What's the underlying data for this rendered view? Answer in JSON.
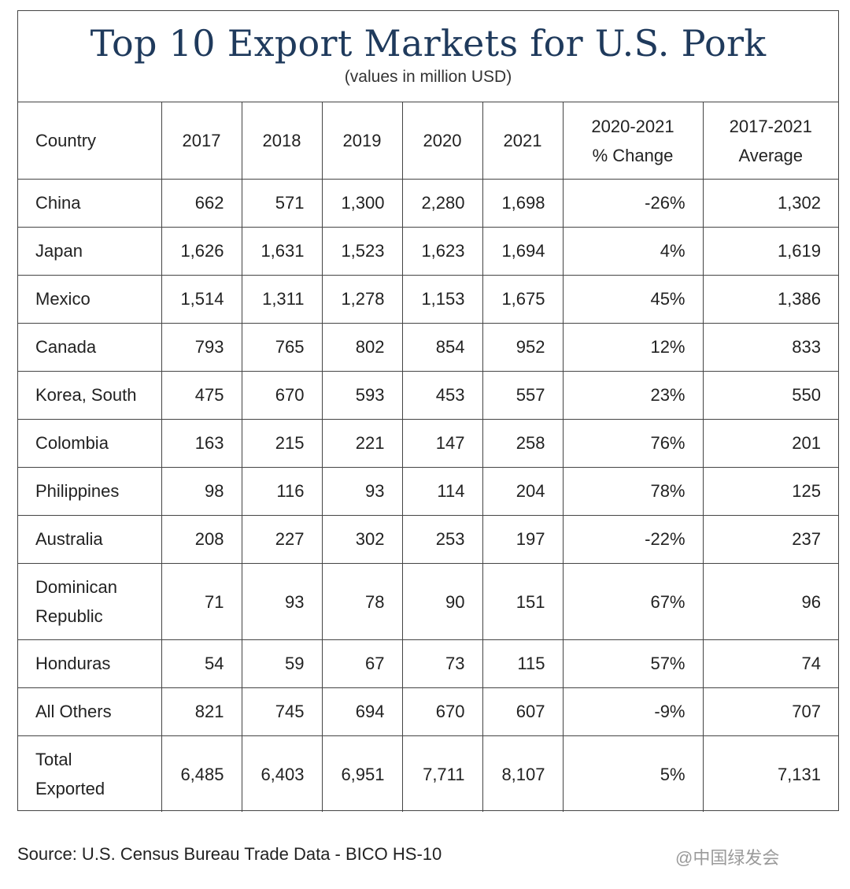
{
  "chart_data": {
    "type": "table",
    "title": "Top 10 Export Markets for U.S. Pork",
    "subtitle": "(values in million USD)",
    "columns": [
      "Country",
      "2017",
      "2018",
      "2019",
      "2020",
      "2021",
      "2020-2021 % Change",
      "2017-2021 Average"
    ],
    "header_lines": [
      [
        "Country"
      ],
      [
        "2017"
      ],
      [
        "2018"
      ],
      [
        "2019"
      ],
      [
        "2020"
      ],
      [
        "2021"
      ],
      [
        "2020-2021",
        "% Change"
      ],
      [
        "2017-2021",
        "Average"
      ]
    ],
    "rows": [
      {
        "country": [
          "China"
        ],
        "values": [
          "662",
          "571",
          "1,300",
          "2,280",
          "1,698"
        ],
        "change": "-26%",
        "average": "1,302"
      },
      {
        "country": [
          "Japan"
        ],
        "values": [
          "1,626",
          "1,631",
          "1,523",
          "1,623",
          "1,694"
        ],
        "change": "4%",
        "average": "1,619"
      },
      {
        "country": [
          "Mexico"
        ],
        "values": [
          "1,514",
          "1,311",
          "1,278",
          "1,153",
          "1,675"
        ],
        "change": "45%",
        "average": "1,386"
      },
      {
        "country": [
          "Canada"
        ],
        "values": [
          "793",
          "765",
          "802",
          "854",
          "952"
        ],
        "change": "12%",
        "average": "833"
      },
      {
        "country": [
          "Korea, South"
        ],
        "values": [
          "475",
          "670",
          "593",
          "453",
          "557"
        ],
        "change": "23%",
        "average": "550"
      },
      {
        "country": [
          "Colombia"
        ],
        "values": [
          "163",
          "215",
          "221",
          "147",
          "258"
        ],
        "change": "76%",
        "average": "201"
      },
      {
        "country": [
          "Philippines"
        ],
        "values": [
          "98",
          "116",
          "93",
          "114",
          "204"
        ],
        "change": "78%",
        "average": "125"
      },
      {
        "country": [
          "Australia"
        ],
        "values": [
          "208",
          "227",
          "302",
          "253",
          "197"
        ],
        "change": "-22%",
        "average": "237"
      },
      {
        "country": [
          "Dominican",
          "Republic"
        ],
        "values": [
          "71",
          "93",
          "78",
          "90",
          "151"
        ],
        "change": "67%",
        "average": "96"
      },
      {
        "country": [
          "Honduras"
        ],
        "values": [
          "54",
          "59",
          "67",
          "73",
          "115"
        ],
        "change": "57%",
        "average": "74"
      },
      {
        "country": [
          "All Others"
        ],
        "values": [
          "821",
          "745",
          "694",
          "670",
          "607"
        ],
        "change": "-9%",
        "average": "707"
      },
      {
        "country": [
          "Total",
          "Exported"
        ],
        "values": [
          "6,485",
          "6,403",
          "6,951",
          "7,711",
          "8,107"
        ],
        "change": "5%",
        "average": "7,131"
      }
    ]
  },
  "source": "Source: U.S. Census Bureau Trade Data - BICO HS-10",
  "watermark": "@中国绿发会",
  "colors": {
    "title": "#1f3a5c",
    "border": "#444444",
    "text": "#222222"
  }
}
